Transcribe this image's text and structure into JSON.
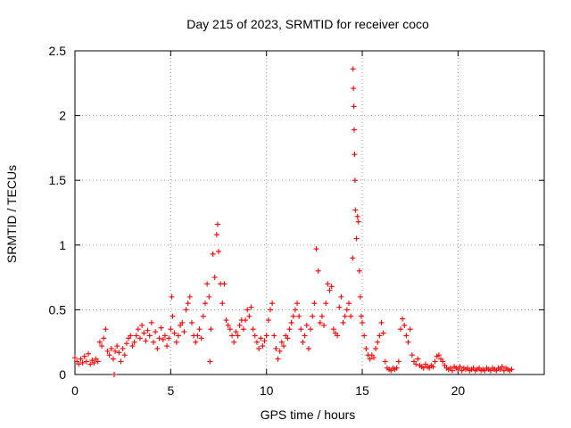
{
  "chart_data": {
    "type": "scatter",
    "title": "Day 215 of 2023, SRMTID for receiver coco",
    "xlabel": "GPS time / hours",
    "ylabel": "SRMTID / TECUs",
    "xlim": [
      0,
      24.5
    ],
    "ylim": [
      0,
      2.5
    ],
    "xticks": [
      0,
      5,
      10,
      15,
      20
    ],
    "xtick_labels": [
      "0",
      "5",
      "10",
      "15",
      "20"
    ],
    "yticks": [
      0,
      0.5,
      1,
      1.5,
      2,
      2.5
    ],
    "ytick_labels": [
      "0",
      "0.5",
      "1",
      "1.5",
      "2",
      "2.5"
    ],
    "grid": true,
    "marker": "+",
    "series": [
      {
        "name": "SRMTID",
        "color": "#ff0000",
        "points": [
          [
            0.0,
            0.13
          ],
          [
            0.1,
            0.1
          ],
          [
            0.2,
            0.08
          ],
          [
            0.3,
            0.12
          ],
          [
            0.4,
            0.09
          ],
          [
            0.5,
            0.14
          ],
          [
            0.6,
            0.1
          ],
          [
            0.7,
            0.16
          ],
          [
            0.8,
            0.08
          ],
          [
            0.9,
            0.11
          ],
          [
            1.0,
            0.09
          ],
          [
            1.1,
            0.12
          ],
          [
            1.2,
            0.1
          ],
          [
            1.3,
            0.25
          ],
          [
            1.4,
            0.22
          ],
          [
            1.5,
            0.28
          ],
          [
            1.6,
            0.35
          ],
          [
            1.7,
            0.18
          ],
          [
            1.8,
            0.15
          ],
          [
            1.9,
            0.2
          ],
          [
            2.0,
            0.12
          ],
          [
            2.05,
            0.0
          ],
          [
            2.1,
            0.18
          ],
          [
            2.2,
            0.22
          ],
          [
            2.3,
            0.17
          ],
          [
            2.4,
            0.1
          ],
          [
            2.5,
            0.2
          ],
          [
            2.6,
            0.15
          ],
          [
            2.7,
            0.24
          ],
          [
            2.8,
            0.28
          ],
          [
            2.9,
            0.3
          ],
          [
            3.0,
            0.22
          ],
          [
            3.1,
            0.25
          ],
          [
            3.2,
            0.3
          ],
          [
            3.3,
            0.35
          ],
          [
            3.4,
            0.28
          ],
          [
            3.5,
            0.38
          ],
          [
            3.6,
            0.32
          ],
          [
            3.7,
            0.26
          ],
          [
            3.8,
            0.34
          ],
          [
            3.9,
            0.3
          ],
          [
            4.0,
            0.4
          ],
          [
            4.1,
            0.25
          ],
          [
            4.2,
            0.33
          ],
          [
            4.3,
            0.2
          ],
          [
            4.4,
            0.28
          ],
          [
            4.5,
            0.36
          ],
          [
            4.6,
            0.27
          ],
          [
            4.7,
            0.3
          ],
          [
            4.8,
            0.22
          ],
          [
            4.9,
            0.28
          ],
          [
            5.0,
            0.35
          ],
          [
            5.05,
            0.6
          ],
          [
            5.1,
            0.45
          ],
          [
            5.2,
            0.32
          ],
          [
            5.3,
            0.25
          ],
          [
            5.4,
            0.3
          ],
          [
            5.5,
            0.38
          ],
          [
            5.6,
            0.4
          ],
          [
            5.7,
            0.33
          ],
          [
            5.8,
            0.5
          ],
          [
            5.9,
            0.55
          ],
          [
            6.0,
            0.6
          ],
          [
            6.1,
            0.4
          ],
          [
            6.2,
            0.3
          ],
          [
            6.3,
            0.25
          ],
          [
            6.4,
            0.3
          ],
          [
            6.5,
            0.35
          ],
          [
            6.6,
            0.28
          ],
          [
            6.7,
            0.45
          ],
          [
            6.8,
            0.55
          ],
          [
            6.9,
            0.7
          ],
          [
            7.0,
            0.6
          ],
          [
            7.05,
            0.1
          ],
          [
            7.1,
            0.35
          ],
          [
            7.2,
            0.93
          ],
          [
            7.3,
            0.75
          ],
          [
            7.4,
            1.08
          ],
          [
            7.45,
            1.16
          ],
          [
            7.5,
            0.95
          ],
          [
            7.6,
            0.7
          ],
          [
            7.7,
            0.55
          ],
          [
            7.8,
            0.7
          ],
          [
            7.9,
            0.42
          ],
          [
            8.0,
            0.38
          ],
          [
            8.1,
            0.35
          ],
          [
            8.2,
            0.3
          ],
          [
            8.3,
            0.25
          ],
          [
            8.4,
            0.33
          ],
          [
            8.5,
            0.3
          ],
          [
            8.6,
            0.38
          ],
          [
            8.7,
            0.42
          ],
          [
            8.8,
            0.35
          ],
          [
            8.9,
            0.42
          ],
          [
            9.0,
            0.5
          ],
          [
            9.1,
            0.45
          ],
          [
            9.2,
            0.52
          ],
          [
            9.3,
            0.35
          ],
          [
            9.4,
            0.3
          ],
          [
            9.5,
            0.25
          ],
          [
            9.6,
            0.2
          ],
          [
            9.7,
            0.28
          ],
          [
            9.8,
            0.22
          ],
          [
            9.9,
            0.26
          ],
          [
            10.0,
            0.3
          ],
          [
            10.1,
            0.42
          ],
          [
            10.2,
            0.5
          ],
          [
            10.3,
            0.55
          ],
          [
            10.4,
            0.3
          ],
          [
            10.5,
            0.2
          ],
          [
            10.6,
            0.12
          ],
          [
            10.7,
            0.18
          ],
          [
            10.8,
            0.25
          ],
          [
            10.9,
            0.22
          ],
          [
            11.0,
            0.3
          ],
          [
            11.1,
            0.28
          ],
          [
            11.2,
            0.35
          ],
          [
            11.3,
            0.4
          ],
          [
            11.4,
            0.45
          ],
          [
            11.5,
            0.5
          ],
          [
            11.6,
            0.55
          ],
          [
            11.7,
            0.45
          ],
          [
            11.8,
            0.35
          ],
          [
            11.9,
            0.25
          ],
          [
            12.0,
            0.3
          ],
          [
            12.1,
            0.38
          ],
          [
            12.2,
            0.2
          ],
          [
            12.3,
            0.35
          ],
          [
            12.4,
            0.45
          ],
          [
            12.5,
            0.55
          ],
          [
            12.6,
            0.97
          ],
          [
            12.7,
            0.8
          ],
          [
            12.8,
            0.4
          ],
          [
            12.9,
            0.45
          ],
          [
            13.0,
            0.38
          ],
          [
            13.1,
            0.55
          ],
          [
            13.2,
            0.7
          ],
          [
            13.3,
            0.65
          ],
          [
            13.4,
            0.68
          ],
          [
            13.5,
            0.35
          ],
          [
            13.6,
            0.32
          ],
          [
            13.7,
            0.3
          ],
          [
            13.8,
            0.52
          ],
          [
            13.9,
            0.6
          ],
          [
            14.0,
            0.4
          ],
          [
            14.1,
            0.45
          ],
          [
            14.2,
            0.5
          ],
          [
            14.3,
            0.55
          ],
          [
            14.4,
            0.45
          ],
          [
            14.5,
            0.9
          ],
          [
            14.52,
            2.36
          ],
          [
            14.54,
            2.21
          ],
          [
            14.56,
            2.07
          ],
          [
            14.58,
            1.89
          ],
          [
            14.6,
            1.7
          ],
          [
            14.62,
            1.5
          ],
          [
            14.64,
            1.27
          ],
          [
            14.7,
            1.05
          ],
          [
            14.75,
            1.22
          ],
          [
            14.8,
            1.18
          ],
          [
            14.85,
            0.8
          ],
          [
            14.9,
            0.6
          ],
          [
            14.95,
            0.45
          ],
          [
            15.0,
            0.4
          ],
          [
            15.1,
            0.3
          ],
          [
            15.2,
            0.2
          ],
          [
            15.3,
            0.15
          ],
          [
            15.4,
            0.12
          ],
          [
            15.5,
            0.15
          ],
          [
            15.6,
            0.13
          ],
          [
            15.7,
            0.2
          ],
          [
            15.8,
            0.25
          ],
          [
            15.9,
            0.3
          ],
          [
            16.0,
            0.4
          ],
          [
            16.1,
            0.32
          ],
          [
            16.2,
            0.1
          ],
          [
            16.3,
            0.05
          ],
          [
            16.4,
            0.04
          ],
          [
            16.5,
            0.03
          ],
          [
            16.6,
            0.05
          ],
          [
            16.7,
            0.04
          ],
          [
            16.8,
            0.05
          ],
          [
            16.9,
            0.1
          ],
          [
            17.0,
            0.35
          ],
          [
            17.1,
            0.43
          ],
          [
            17.2,
            0.38
          ],
          [
            17.3,
            0.3
          ],
          [
            17.4,
            0.25
          ],
          [
            17.5,
            0.35
          ],
          [
            17.6,
            0.15
          ],
          [
            17.7,
            0.1
          ],
          [
            17.8,
            0.08
          ],
          [
            17.9,
            0.12
          ],
          [
            18.0,
            0.07
          ],
          [
            18.1,
            0.06
          ],
          [
            18.2,
            0.05
          ],
          [
            18.3,
            0.08
          ],
          [
            18.4,
            0.06
          ],
          [
            18.5,
            0.05
          ],
          [
            18.6,
            0.07
          ],
          [
            18.7,
            0.06
          ],
          [
            18.8,
            0.1
          ],
          [
            18.9,
            0.14
          ],
          [
            19.0,
            0.15
          ],
          [
            19.1,
            0.12
          ],
          [
            19.2,
            0.1
          ],
          [
            19.3,
            0.07
          ],
          [
            19.4,
            0.05
          ],
          [
            19.5,
            0.04
          ],
          [
            19.6,
            0.05
          ],
          [
            19.7,
            0.03
          ],
          [
            19.8,
            0.06
          ],
          [
            19.9,
            0.05
          ],
          [
            20.0,
            0.04
          ],
          [
            20.1,
            0.06
          ],
          [
            20.2,
            0.03
          ],
          [
            20.3,
            0.05
          ],
          [
            20.4,
            0.04
          ],
          [
            20.5,
            0.05
          ],
          [
            20.6,
            0.03
          ],
          [
            20.7,
            0.04
          ],
          [
            20.8,
            0.05
          ],
          [
            20.9,
            0.03
          ],
          [
            21.0,
            0.04
          ],
          [
            21.1,
            0.05
          ],
          [
            21.2,
            0.03
          ],
          [
            21.3,
            0.04
          ],
          [
            21.4,
            0.03
          ],
          [
            21.5,
            0.05
          ],
          [
            21.6,
            0.04
          ],
          [
            21.7,
            0.03
          ],
          [
            21.8,
            0.05
          ],
          [
            21.9,
            0.04
          ],
          [
            22.0,
            0.03
          ],
          [
            22.1,
            0.05
          ],
          [
            22.2,
            0.04
          ],
          [
            22.3,
            0.06
          ],
          [
            22.4,
            0.03
          ],
          [
            22.5,
            0.05
          ],
          [
            22.6,
            0.04
          ],
          [
            22.7,
            0.03
          ],
          [
            22.8,
            0.04
          ]
        ]
      }
    ]
  }
}
